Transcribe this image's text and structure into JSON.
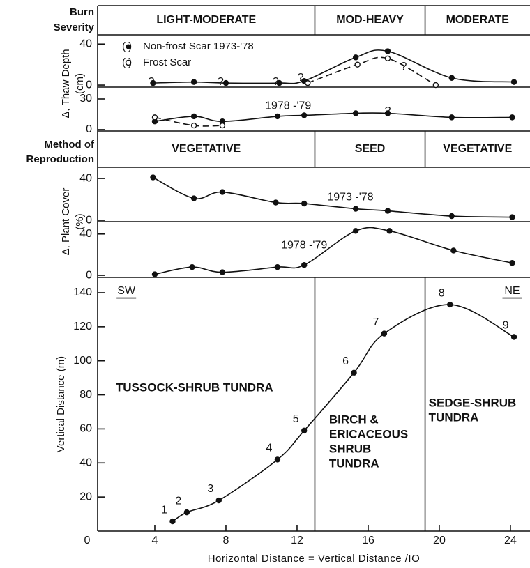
{
  "zones": {
    "boundaries": [
      13.0,
      19.2
    ],
    "burn_severity": {
      "label": [
        "Burn",
        "Severity"
      ],
      "names": [
        "LIGHT-MODERATE",
        "MOD-HEAVY",
        "MODERATE"
      ]
    },
    "reproduction": {
      "label": [
        "Method of",
        "Reproduction"
      ],
      "names": [
        "VEGETATIVE",
        "SEED",
        "VEGETATIVE"
      ]
    }
  },
  "chart_data": [
    {
      "type": "line",
      "ylabel": [
        "Δ, Thaw Depth",
        "(cm)"
      ],
      "ylim": [
        -2,
        49
      ],
      "yticks": [
        0,
        40
      ],
      "series": [
        {
          "name": "Non-frost Scar 1973-'78",
          "marker": "filled",
          "dash": false,
          "x": [
            3.9,
            6.2,
            8.0,
            11.0,
            12.4,
            15.3,
            17.1,
            20.7,
            24.2
          ],
          "values": [
            2,
            3,
            2,
            2,
            4,
            27,
            33,
            7,
            3
          ]
        },
        {
          "name": "Frost Scar",
          "marker": "open",
          "dash": true,
          "x": [
            12.6,
            15.4,
            17.1,
            19.8
          ],
          "values": [
            2,
            20,
            26,
            0
          ]
        }
      ],
      "annotations": [
        {
          "text": "?",
          "x": 3.8,
          "y": 3
        },
        {
          "text": "?",
          "x": 7.7,
          "y": 3
        },
        {
          "text": "?",
          "x": 10.8,
          "y": 3
        },
        {
          "text": "?",
          "x": 12.2,
          "y": 7
        },
        {
          "text": "?",
          "x": 18.0,
          "y": 18
        }
      ]
    },
    {
      "type": "line",
      "ylim": [
        -1.4,
        41.6
      ],
      "yticks": [
        0,
        30
      ],
      "series": [
        {
          "marker": "filled",
          "dash": false,
          "x": [
            4.0,
            6.2,
            7.8,
            10.9,
            12.4,
            15.3,
            17.1,
            20.7,
            24.1
          ],
          "values": [
            8,
            13,
            8,
            13,
            14,
            16,
            16,
            12,
            12
          ]
        },
        {
          "marker": "open",
          "dash": true,
          "x": [
            4.0,
            6.2,
            7.8
          ],
          "values": [
            12,
            4,
            4
          ]
        }
      ],
      "annotations": [
        {
          "text": "1978 -'79",
          "x": 11.5,
          "y": 23
        },
        {
          "text": "?",
          "x": 17.1,
          "y": 18
        }
      ]
    },
    {
      "type": "line",
      "ylabel": [
        "Δ, Plant Cover",
        "(%)"
      ],
      "ylim": [
        -1.3,
        50.7
      ],
      "yticks": [
        0,
        40
      ],
      "series": [
        {
          "marker": "filled",
          "dash": false,
          "x": [
            3.9,
            6.2,
            7.8,
            10.8,
            12.4,
            15.3,
            17.1,
            20.7,
            24.1
          ],
          "values": [
            41,
            21,
            27,
            17,
            16,
            11,
            9,
            4,
            3
          ]
        }
      ],
      "annotations": [
        {
          "text": "1973 -'78",
          "x": 15.0,
          "y": 22
        }
      ]
    },
    {
      "type": "line",
      "ylim": [
        -2,
        52
      ],
      "yticks": [
        0,
        40
      ],
      "series": [
        {
          "marker": "filled",
          "dash": false,
          "x": [
            4.0,
            6.1,
            7.8,
            10.9,
            12.4,
            15.3,
            17.2,
            20.8,
            24.1
          ],
          "values": [
            1,
            8,
            3,
            8,
            10,
            43,
            43,
            24,
            12
          ]
        }
      ],
      "annotations": [
        {
          "text": "1978 -'79",
          "x": 12.4,
          "y": 29
        }
      ]
    },
    {
      "type": "line",
      "xlabel": "Horizontal Distance = Vertical Distance /IO",
      "ylabel": [
        "Vertical Distance (m)"
      ],
      "xlim": [
        0,
        25.1
      ],
      "xticks": [
        0,
        4,
        8,
        12,
        16,
        20,
        24
      ],
      "ylim": [
        0,
        149
      ],
      "yticks": [
        20,
        40,
        60,
        80,
        100,
        120,
        140
      ],
      "series": [
        {
          "marker": "filled",
          "dash": false,
          "x": [
            5.0,
            5.8,
            7.6,
            10.9,
            12.4,
            15.2,
            16.9,
            20.6,
            24.2
          ],
          "values": [
            5.7,
            11,
            18,
            42,
            59,
            93,
            116,
            133,
            114
          ],
          "point_labels": [
            "1",
            "2",
            "3",
            "4",
            "5",
            "6",
            "7",
            "8",
            "9"
          ]
        }
      ],
      "annotations": [
        {
          "text": "SW",
          "x": 2.4,
          "y": 141,
          "underline": true
        },
        {
          "text": "NE",
          "x": 24.1,
          "y": 141,
          "underline": true
        },
        {
          "lines": [
            "TUSSOCK-SHRUB TUNDRA"
          ],
          "x": 1.8,
          "y": 84
        },
        {
          "lines": [
            "BIRCH &",
            "ERICACEOUS",
            "SHRUB",
            "TUNDRA"
          ],
          "x": 13.8,
          "y": 65
        },
        {
          "lines": [
            "SEDGE-SHRUB",
            "TUNDRA"
          ],
          "x": 19.4,
          "y": 75
        }
      ]
    }
  ]
}
